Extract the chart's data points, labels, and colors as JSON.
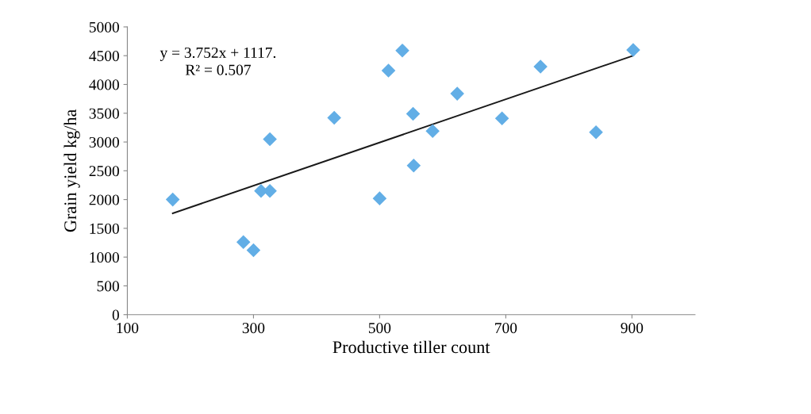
{
  "chart_data": {
    "type": "scatter",
    "xlabel": "Productive tiller count",
    "ylabel": "Grain yield kg/ha",
    "annotations": [
      "y = 3.752x + 1117.\nR² = 0.507"
    ],
    "series": [
      {
        "color": "#62aee6",
        "marker": "diamond",
        "x": [
          172,
          284,
          300,
          312,
          326,
          326,
          428,
          500,
          514,
          536,
          553,
          554,
          584,
          623,
          694,
          755,
          843,
          902
        ],
        "values": [
          2000,
          1260,
          1120,
          2150,
          2150,
          3050,
          3420,
          2020,
          4240,
          4590,
          3490,
          2590,
          3190,
          3840,
          3410,
          4310,
          3170,
          4600
        ]
      },
      {
        "type": "line",
        "color": "#1a1a1a",
        "marker": "none",
        "x": [
          172,
          902
        ],
        "values": [
          1760,
          4500
        ]
      }
    ],
    "xlim": [
      100,
      1000
    ],
    "xticks": [
      100,
      300,
      500,
      700,
      900
    ],
    "ylim": [
      0,
      5000
    ],
    "yticks": [
      0,
      500,
      1000,
      1500,
      2000,
      2500,
      3000,
      3500,
      4000,
      4500,
      5000
    ],
    "grid": false,
    "legend": false
  }
}
